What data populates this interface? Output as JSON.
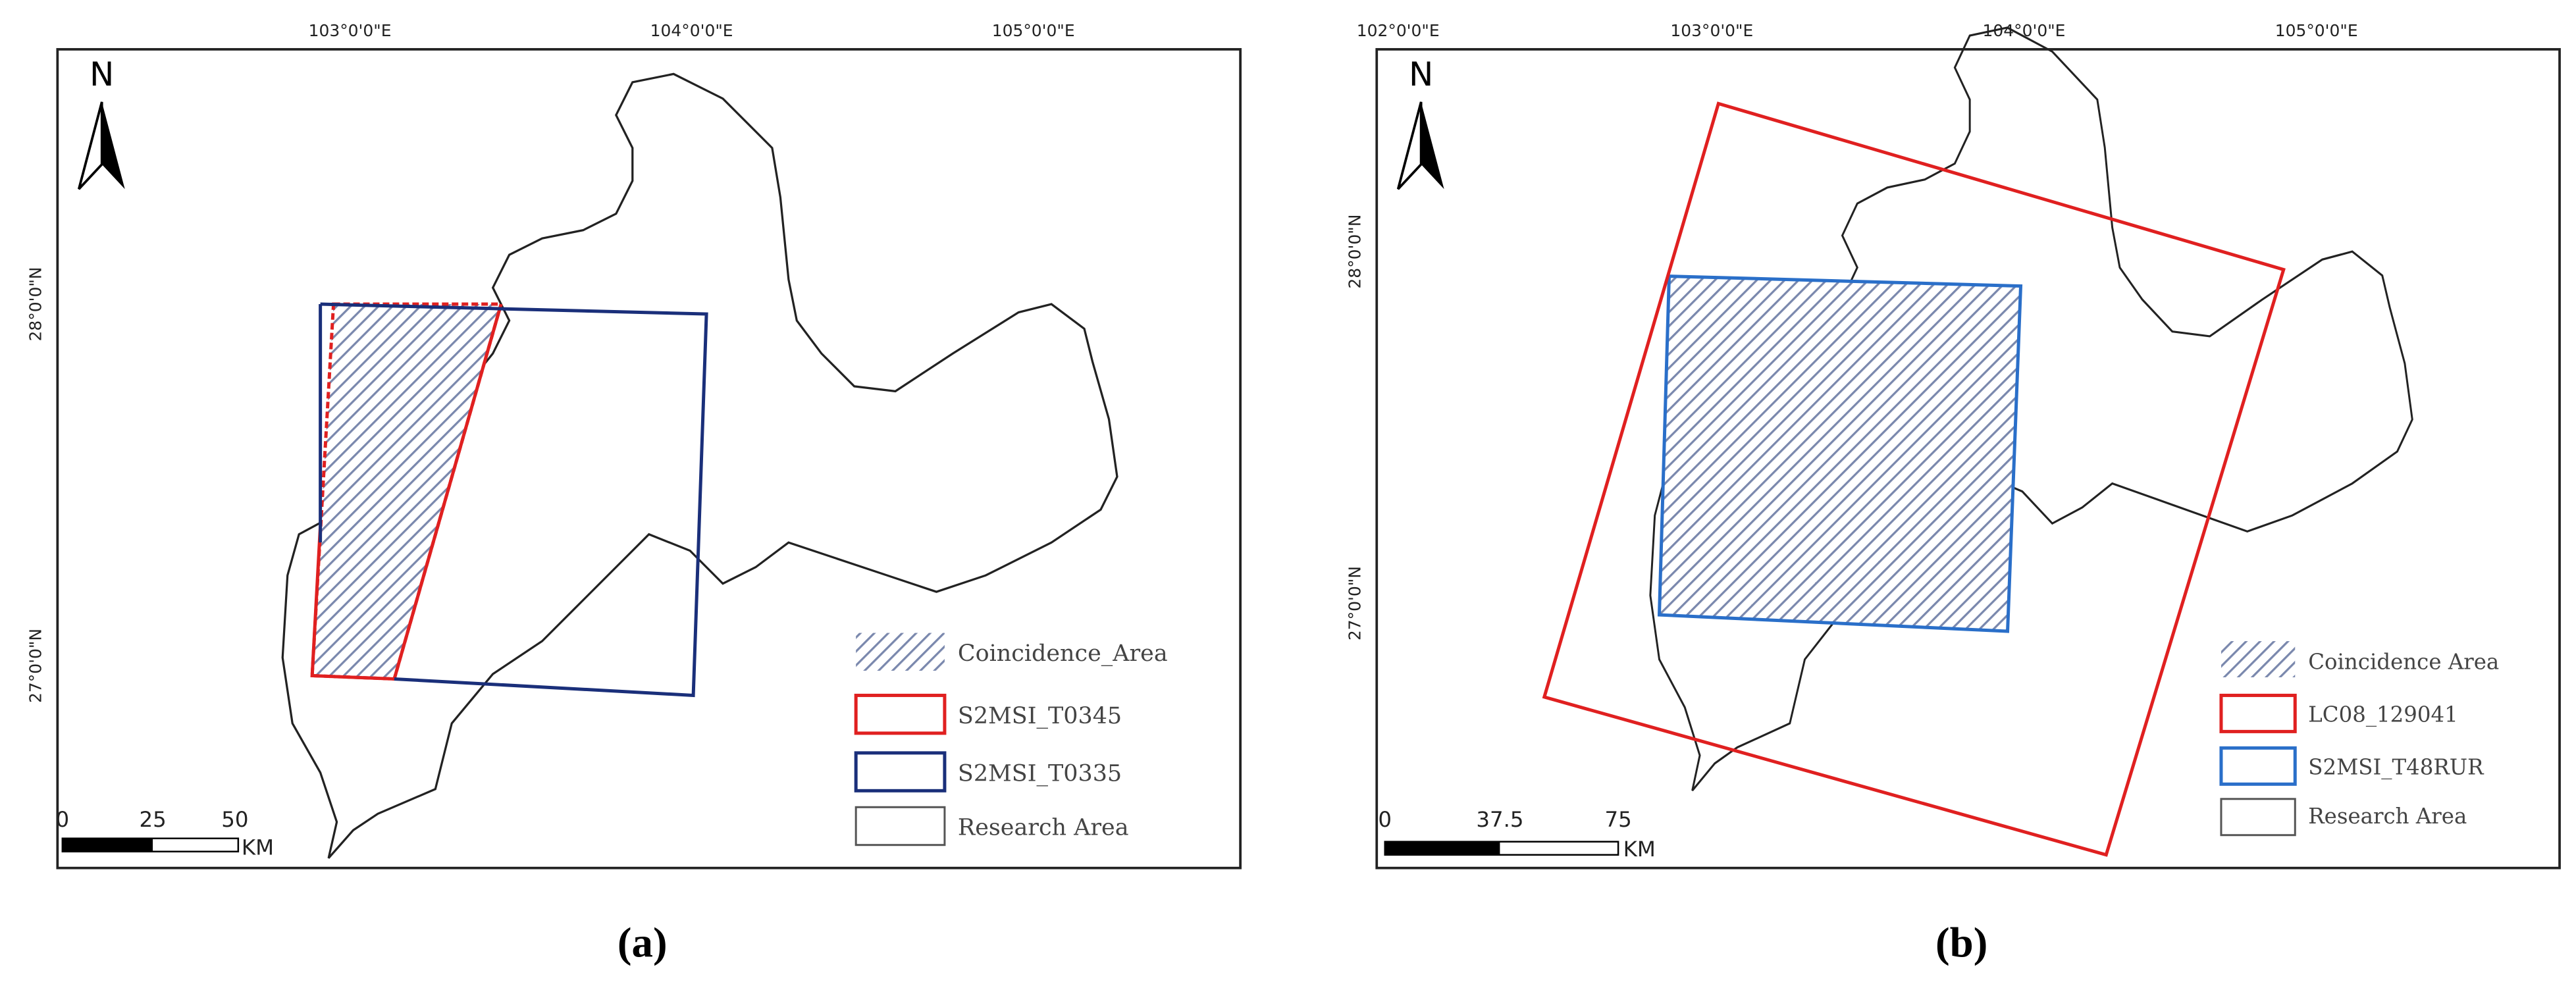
{
  "panels": [
    {
      "north": "N",
      "lon_labels": [
        "103°0'0\"E",
        "104°0'0\"E",
        "105°0'0\"E"
      ],
      "lat_labels": [
        "28°0'0\"N",
        "27°0'0\"N"
      ],
      "legend": [
        "Coincidence_Area",
        "S2MSI_T0345",
        "S2MSI_T0335",
        "Research Area"
      ],
      "scale_labels": [
        "0",
        "25",
        "50"
      ],
      "scale_unit": "KM",
      "caption": "(a)"
    },
    {
      "north": "N",
      "lon_labels": [
        "102°0'0\"E",
        "103°0'0\"E",
        "104°0'0\"E",
        "105°0'0\"E"
      ],
      "lat_labels": [
        "28°0'0\"N",
        "27°0'0\"N"
      ],
      "legend": [
        "Coincidence Area",
        "LC08_129041",
        "S2MSI_T48RUR",
        "Research Area"
      ],
      "scale_labels": [
        "0",
        "37.5",
        "75"
      ],
      "scale_unit": "KM",
      "caption": "(b)"
    }
  ]
}
